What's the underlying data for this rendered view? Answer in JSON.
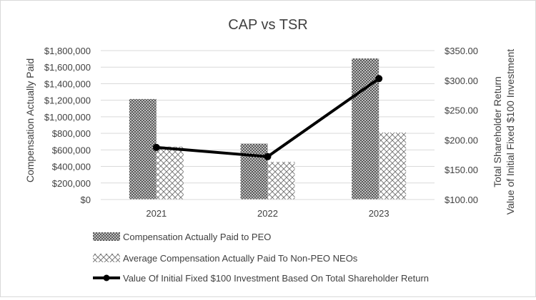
{
  "colors": {
    "axis_text": "#404040",
    "grid": "#d9d9d9",
    "line": "#000000",
    "bar_peo": "#7f7f7f",
    "bar_neo": "#7f7f7f",
    "background": "#ffffff"
  },
  "chart_data": {
    "type": "bar",
    "title": "CAP vs TSR",
    "categories": [
      "2021",
      "2022",
      "2023"
    ],
    "ylabel": "Compensation Actually Paid",
    "y2label": [
      "Total Shareholder Return",
      "Value of Initial Fixed $100 Investment"
    ],
    "ylim": [
      0,
      1800000
    ],
    "y2lim": [
      100,
      350
    ],
    "yticks": [
      0,
      200000,
      400000,
      600000,
      800000,
      1000000,
      1200000,
      1400000,
      1600000,
      1800000
    ],
    "ytick_labels": [
      "$0",
      "$200,000",
      "$400,000",
      "$600,000",
      "$800,000",
      "$1,000,000",
      "$1,200,000",
      "$1,400,000",
      "$1,600,000",
      "$1,800,000"
    ],
    "y2ticks": [
      100,
      150,
      200,
      250,
      300,
      350
    ],
    "y2tick_labels": [
      "$100.00",
      "$150.00",
      "$200.00",
      "$250.00",
      "$300.00",
      "$350.00"
    ],
    "grid": true,
    "legend_position": "bottom",
    "series": [
      {
        "name": "Compensation Actually Paid to PEO",
        "kind": "bar",
        "pattern": "dense",
        "axis": "left",
        "values": [
          1215000,
          675000,
          1705000
        ]
      },
      {
        "name": "Average Compensation Actually Paid To Non-PEO NEOs",
        "kind": "bar",
        "pattern": "lattice",
        "axis": "left",
        "values": [
          640000,
          455000,
          810000
        ]
      },
      {
        "name": "Value Of Initial Fixed $100 Investment Based On Total Shareholder Return",
        "kind": "line",
        "axis": "right",
        "values": [
          187.5,
          172,
          303
        ]
      }
    ]
  }
}
